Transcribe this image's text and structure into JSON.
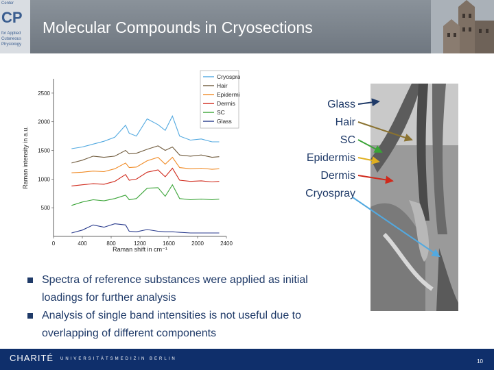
{
  "header": {
    "title": "Molecular Compounds in Cryosections",
    "logo_lines": [
      "Center",
      "CP",
      "for Applied",
      "Cutaneous",
      "Physiology"
    ]
  },
  "chart_data": {
    "type": "line",
    "title": "",
    "xlabel": "Raman shift in cm⁻¹",
    "ylabel": "Raman intensity in a.u.",
    "xlim": [
      0,
      2400
    ],
    "ylim": [
      0,
      2750
    ],
    "x_ticks": [
      0,
      400,
      800,
      1200,
      1600,
      2000,
      2400
    ],
    "y_ticks": [
      500,
      1000,
      1500,
      2000,
      2500
    ],
    "grid": false,
    "legend_position": "top-right",
    "x": [
      250,
      400,
      550,
      700,
      850,
      1000,
      1050,
      1150,
      1300,
      1450,
      1550,
      1650,
      1750,
      1900,
      2050,
      2200,
      2300
    ],
    "series": [
      {
        "name": "Cryospray",
        "color": "#52a9e0",
        "values": [
          1530,
          1560,
          1610,
          1660,
          1730,
          1940,
          1800,
          1750,
          2050,
          1950,
          1850,
          2100,
          1750,
          1680,
          1700,
          1650,
          1650
        ]
      },
      {
        "name": "Hair",
        "color": "#6f5a3c",
        "values": [
          1280,
          1330,
          1400,
          1380,
          1400,
          1500,
          1440,
          1450,
          1520,
          1580,
          1500,
          1560,
          1420,
          1400,
          1420,
          1380,
          1390
        ]
      },
      {
        "name": "Epidermis",
        "color": "#f08a24",
        "values": [
          1110,
          1120,
          1140,
          1130,
          1180,
          1280,
          1200,
          1210,
          1320,
          1380,
          1260,
          1380,
          1200,
          1180,
          1190,
          1170,
          1180
        ]
      },
      {
        "name": "Dermis",
        "color": "#d0291b",
        "values": [
          880,
          900,
          920,
          910,
          960,
          1080,
          980,
          1000,
          1120,
          1160,
          1040,
          1190,
          980,
          960,
          970,
          950,
          960
        ]
      },
      {
        "name": "SC",
        "color": "#3aa437",
        "values": [
          540,
          600,
          640,
          620,
          660,
          720,
          640,
          660,
          840,
          850,
          700,
          900,
          660,
          640,
          650,
          640,
          650
        ]
      },
      {
        "name": "Glass",
        "color": "#283a8c",
        "values": [
          60,
          110,
          200,
          160,
          220,
          200,
          90,
          80,
          120,
          90,
          80,
          80,
          70,
          60,
          60,
          60,
          60
        ]
      }
    ]
  },
  "annotations": [
    {
      "label": "Glass",
      "color": "#1f3a68",
      "arrow_color": "#1f3a68"
    },
    {
      "label": "Hair",
      "color": "#1f3a68",
      "arrow_color": "#8a7230"
    },
    {
      "label": "SC",
      "color": "#1f3a68",
      "arrow_color": "#3aa437"
    },
    {
      "label": "Epidermis",
      "color": "#1f3a68",
      "arrow_color": "#e0b020"
    },
    {
      "label": "Dermis",
      "color": "#1f3a68",
      "arrow_color": "#d0291b"
    },
    {
      "label": "Cryospray",
      "color": "#1f3a68",
      "arrow_color": "#52a9e0"
    }
  ],
  "bullets": [
    "Spectra of reference substances were applied as initial loadings for further analysis",
    "Analysis of single band intensities is not useful due to overlapping of different components"
  ],
  "footer": {
    "logo": "CHARITÉ",
    "subtitle": "UNIVERSITÄTSMEDIZIN BERLIN",
    "page": "10"
  }
}
